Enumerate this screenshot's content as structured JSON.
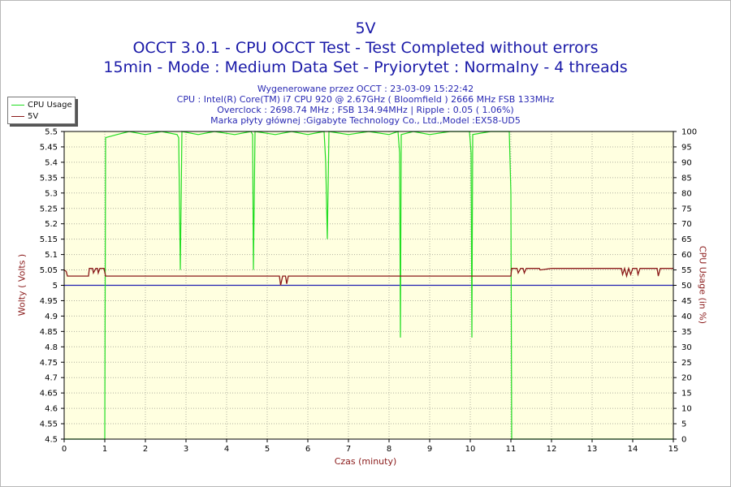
{
  "header": {
    "title": "5V",
    "subtitle1": "OCCT 3.0.1 - CPU OCCT Test - Test Completed without errors",
    "subtitle2": "15min - Mode : Medium Data Set - Pryiorytet : Normalny - 4 threads",
    "info": [
      "Wygenerowane przez OCCT : 23-03-09 15:22:42",
      "CPU : Intel(R) Core(TM) i7 CPU 920 @ 2.67GHz ( Bloomfield ) 2666 MHz FSB 133MHz",
      "Overclock : 2698.74 MHz ; FSB 134.94MHz | Ripple : 0.05 ( 1.06%)",
      "Marka płyty głównej :Gigabyte Technology Co., Ltd.,Model :EX58-UD5"
    ]
  },
  "colors": {
    "cpu": "#22dd22",
    "volt": "#8b1a1a",
    "ref": "#2020b0",
    "plot_bg": "#ffffe0",
    "grid": "#b0b0a0"
  },
  "chart_data": {
    "type": "line",
    "xlabel": "Czas (minuty)",
    "ylabel_left": "Wolty ( Volts )",
    "ylabel_right": "CPU Usage (in %)",
    "xlim": [
      0,
      15
    ],
    "ylim_left": [
      4.5,
      5.5
    ],
    "ylim_right": [
      0,
      100
    ],
    "x_ticks": [
      "0",
      "1",
      "2",
      "3",
      "4",
      "5",
      "6",
      "7",
      "8",
      "9",
      "10",
      "11",
      "12",
      "13",
      "14",
      "15"
    ],
    "y_ticks_left": [
      "5.5",
      "5.45",
      "5.4",
      "5.35",
      "5.3",
      "5.25",
      "5.2",
      "5.15",
      "5.1",
      "5.05",
      "5",
      "4.95",
      "4.9",
      "4.85",
      "4.8",
      "4.75",
      "4.7",
      "4.65",
      "4.6",
      "4.55",
      "4.5"
    ],
    "y_ticks_right": [
      "100",
      "95",
      "90",
      "85",
      "80",
      "75",
      "70",
      "65",
      "60",
      "55",
      "50",
      "45",
      "40",
      "35",
      "30",
      "25",
      "20",
      "15",
      "10",
      "5",
      "0"
    ],
    "grid": true,
    "legend": "top-left",
    "reference_line": 5.0,
    "series": [
      {
        "name": "CPU Usage",
        "axis": "right",
        "points": [
          [
            0,
            0
          ],
          [
            0.98,
            0
          ],
          [
            1.0,
            0
          ],
          [
            1.02,
            98
          ],
          [
            1.3,
            99
          ],
          [
            1.6,
            100
          ],
          [
            2.0,
            99
          ],
          [
            2.4,
            100
          ],
          [
            2.78,
            99
          ],
          [
            2.82,
            98
          ],
          [
            2.86,
            55
          ],
          [
            2.9,
            100
          ],
          [
            3.3,
            99
          ],
          [
            3.7,
            100
          ],
          [
            4.2,
            99
          ],
          [
            4.6,
            100
          ],
          [
            4.64,
            99
          ],
          [
            4.66,
            55
          ],
          [
            4.7,
            100
          ],
          [
            5.2,
            99
          ],
          [
            5.6,
            100
          ],
          [
            6.0,
            99
          ],
          [
            6.4,
            100
          ],
          [
            6.44,
            90
          ],
          [
            6.48,
            65
          ],
          [
            6.52,
            100
          ],
          [
            7.0,
            99
          ],
          [
            7.5,
            100
          ],
          [
            8.0,
            99
          ],
          [
            8.22,
            100
          ],
          [
            8.26,
            93
          ],
          [
            8.28,
            33
          ],
          [
            8.3,
            99
          ],
          [
            8.6,
            100
          ],
          [
            9.0,
            99
          ],
          [
            9.5,
            100
          ],
          [
            9.98,
            100
          ],
          [
            10.02,
            93
          ],
          [
            10.04,
            33
          ],
          [
            10.06,
            99
          ],
          [
            10.5,
            100
          ],
          [
            10.96,
            100
          ],
          [
            11.0,
            80
          ],
          [
            11.02,
            0
          ],
          [
            15,
            0
          ]
        ]
      },
      {
        "name": "5V",
        "axis": "left",
        "points": [
          [
            0,
            5.05
          ],
          [
            0.05,
            5.045
          ],
          [
            0.08,
            5.03
          ],
          [
            0.3,
            5.03
          ],
          [
            0.6,
            5.03
          ],
          [
            0.62,
            5.055
          ],
          [
            0.7,
            5.055
          ],
          [
            0.72,
            5.04
          ],
          [
            0.78,
            5.055
          ],
          [
            0.82,
            5.055
          ],
          [
            0.84,
            5.04
          ],
          [
            0.88,
            5.055
          ],
          [
            0.98,
            5.055
          ],
          [
            1.02,
            5.03
          ],
          [
            2.0,
            5.03
          ],
          [
            3.0,
            5.03
          ],
          [
            4.0,
            5.03
          ],
          [
            5.0,
            5.03
          ],
          [
            5.3,
            5.03
          ],
          [
            5.33,
            5.0
          ],
          [
            5.38,
            5.03
          ],
          [
            5.45,
            5.03
          ],
          [
            5.48,
            5.005
          ],
          [
            5.52,
            5.03
          ],
          [
            7.0,
            5.03
          ],
          [
            8.0,
            5.03
          ],
          [
            9.0,
            5.03
          ],
          [
            10.0,
            5.03
          ],
          [
            11.0,
            5.03
          ],
          [
            11.02,
            5.055
          ],
          [
            11.15,
            5.055
          ],
          [
            11.18,
            5.04
          ],
          [
            11.24,
            5.055
          ],
          [
            11.3,
            5.055
          ],
          [
            11.33,
            5.04
          ],
          [
            11.38,
            5.055
          ],
          [
            11.7,
            5.055
          ],
          [
            11.72,
            5.05
          ],
          [
            12.0,
            5.055
          ],
          [
            13.0,
            5.055
          ],
          [
            13.72,
            5.055
          ],
          [
            13.75,
            5.035
          ],
          [
            13.8,
            5.055
          ],
          [
            13.85,
            5.03
          ],
          [
            13.9,
            5.055
          ],
          [
            13.95,
            5.035
          ],
          [
            14.0,
            5.055
          ],
          [
            14.1,
            5.055
          ],
          [
            14.13,
            5.035
          ],
          [
            14.18,
            5.055
          ],
          [
            14.6,
            5.055
          ],
          [
            14.63,
            5.03
          ],
          [
            14.68,
            5.055
          ],
          [
            15.0,
            5.055
          ]
        ]
      }
    ]
  }
}
